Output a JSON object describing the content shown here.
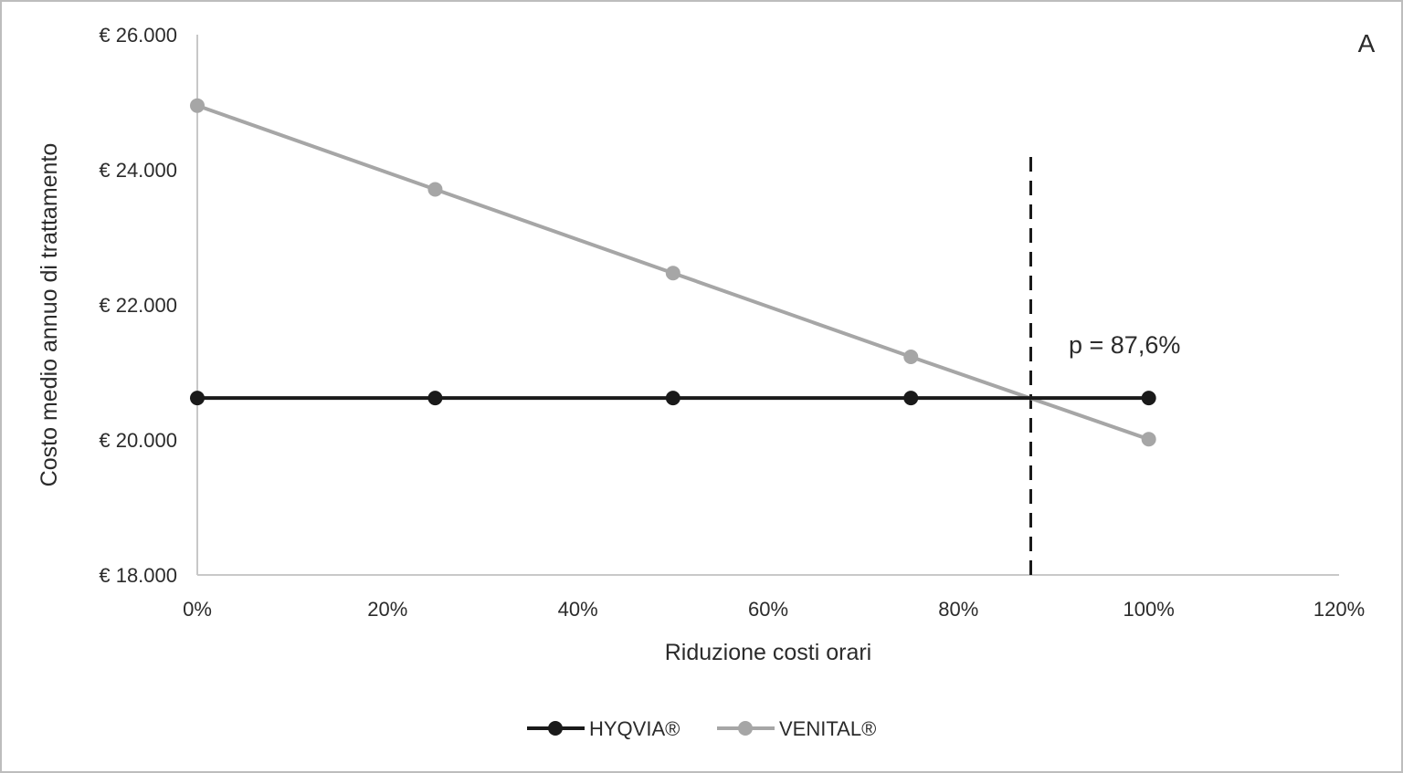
{
  "chart_data": {
    "type": "line",
    "panel_label": "A",
    "xlabel": "Riduzione costi orari",
    "ylabel": "Costo medio annuo di trattamento",
    "x_ticks": [
      "0%",
      "20%",
      "40%",
      "60%",
      "80%",
      "100%",
      "120%"
    ],
    "y_ticks": [
      "€ 18.000",
      "€ 20.000",
      "€ 22.000",
      "€ 24.000",
      "€ 26.000"
    ],
    "xlim": [
      0,
      120
    ],
    "ylim": [
      18000,
      26000
    ],
    "x": [
      0,
      25,
      50,
      75,
      100
    ],
    "series": [
      {
        "name": "HYQVIA®",
        "values": [
          20620,
          20620,
          20620,
          20620,
          20620
        ],
        "color": "#1a1a1a"
      },
      {
        "name": "VENITAL®",
        "values": [
          24950,
          23710,
          22470,
          21230,
          20010
        ],
        "color": "#a6a6a6"
      }
    ],
    "threshold": {
      "x": 87.6,
      "label": "p = 87,6%",
      "style": "dashed"
    },
    "grid": false,
    "legend_position": "bottom"
  }
}
